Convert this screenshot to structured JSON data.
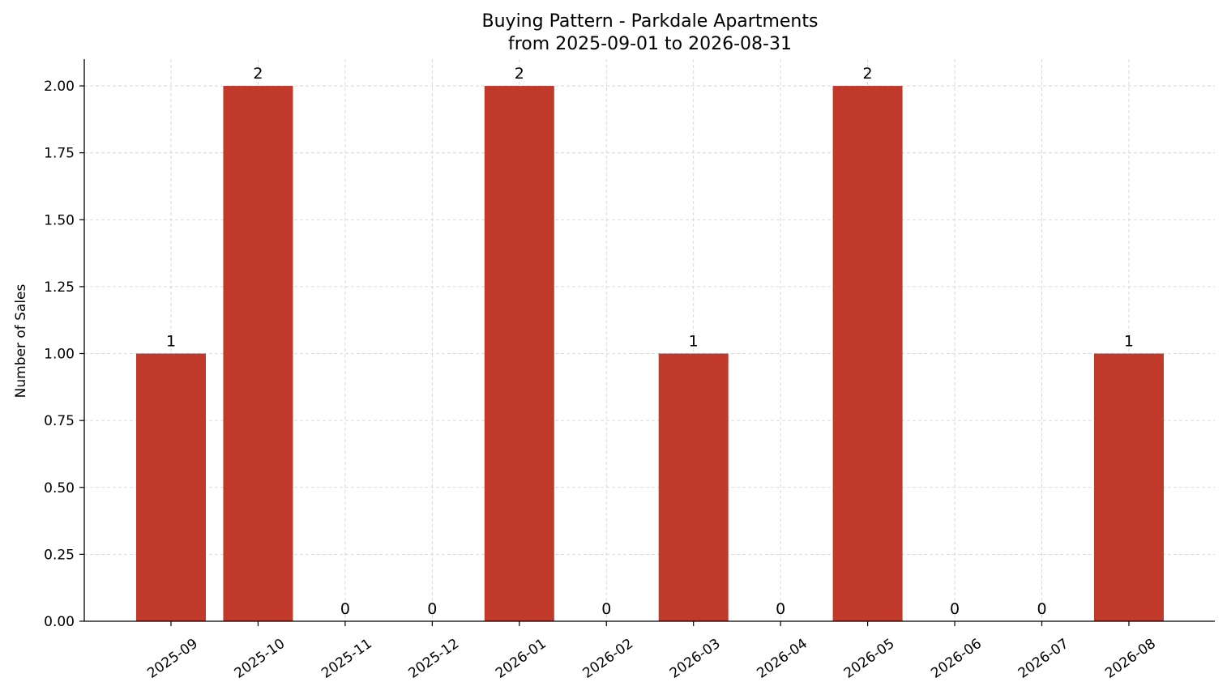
{
  "chart_data": {
    "type": "bar",
    "title": "Buying Pattern - Parkdale Apartments",
    "subtitle": "from 2025-09-01 to 2026-08-31",
    "xlabel": "",
    "ylabel": "Number of Sales",
    "categories": [
      "2025-09",
      "2025-10",
      "2025-11",
      "2025-12",
      "2026-01",
      "2026-02",
      "2026-03",
      "2026-04",
      "2026-05",
      "2026-06",
      "2026-07",
      "2026-08"
    ],
    "values": [
      1,
      2,
      0,
      0,
      2,
      0,
      1,
      0,
      2,
      0,
      0,
      1
    ],
    "data_labels": [
      "1",
      "2",
      "0",
      "0",
      "2",
      "0",
      "1",
      "0",
      "2",
      "0",
      "0",
      "1"
    ],
    "ylim": [
      0,
      2.1
    ],
    "yticks": [
      "0.00",
      "0.25",
      "0.50",
      "0.75",
      "1.00",
      "1.25",
      "1.50",
      "1.75",
      "2.00"
    ],
    "bar_color": "#c0392b",
    "grid": true,
    "legend": "none"
  }
}
